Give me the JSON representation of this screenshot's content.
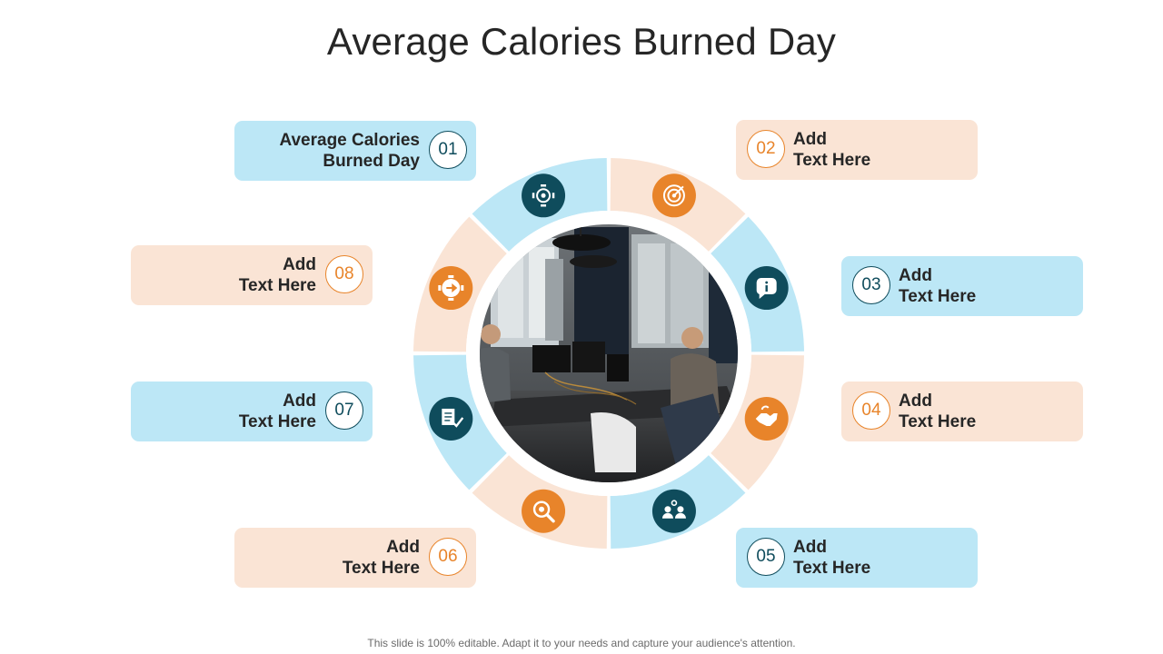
{
  "title": "Average Calories Burned Day",
  "footer": "This slide is 100% editable. Adapt it to your needs and capture your audience's attention.",
  "colors": {
    "blue_segment": "#bce7f6",
    "peach_segment": "#fae4d5",
    "navy_icon": "#0f4c5c",
    "orange_icon": "#e8842a"
  },
  "items": [
    {
      "number": "01",
      "line1": "Average Calories",
      "line2": "Burned Day",
      "icon": "brain-gear-icon"
    },
    {
      "number": "02",
      "line1": "Add",
      "line2": "Text Here",
      "icon": "target-icon"
    },
    {
      "number": "03",
      "line1": "Add",
      "line2": "Text Here",
      "icon": "info-chat-icon"
    },
    {
      "number": "04",
      "line1": "Add",
      "line2": "Text Here",
      "icon": "handshake-icon"
    },
    {
      "number": "05",
      "line1": "Add",
      "line2": "Text Here",
      "icon": "team-icon"
    },
    {
      "number": "06",
      "line1": "Add",
      "line2": "Text Here",
      "icon": "search-gear-icon"
    },
    {
      "number": "07",
      "line1": "Add",
      "line2": "Text Here",
      "icon": "document-check-icon"
    },
    {
      "number": "08",
      "line1": "Add",
      "line2": "Text Here",
      "icon": "gear-arrow-icon"
    }
  ]
}
